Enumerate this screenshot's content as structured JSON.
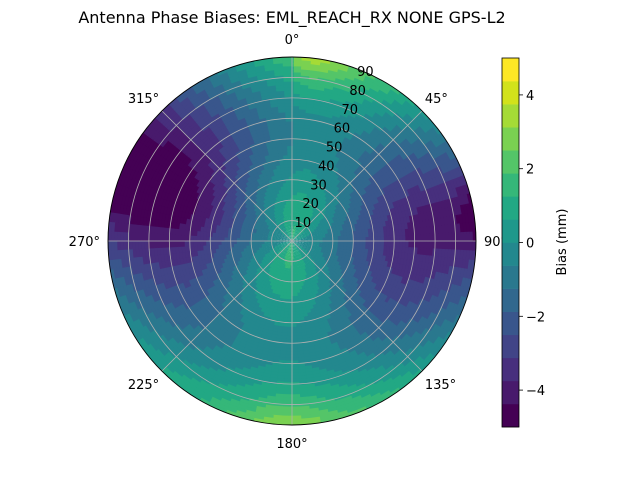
{
  "chart_data": {
    "type": "polar-contour",
    "title": "Antenna Phase Biases: EML_REACH_RX    NONE GPS-L2",
    "angular_ticks": [
      {
        "deg": 0,
        "label": "0°"
      },
      {
        "deg": 45,
        "label": "45°"
      },
      {
        "deg": 90,
        "label": "90°"
      },
      {
        "deg": 135,
        "label": "135°"
      },
      {
        "deg": 180,
        "label": "180°"
      },
      {
        "deg": 225,
        "label": "225°"
      },
      {
        "deg": 270,
        "label": "270°"
      },
      {
        "deg": 315,
        "label": "315°"
      }
    ],
    "radial_ticks": [
      "10",
      "20",
      "30",
      "40",
      "50",
      "60",
      "70",
      "80",
      "90"
    ],
    "radial_range": [
      0,
      90
    ],
    "angle_zero": "top",
    "angle_direction": "clockwise",
    "grid": true,
    "colorbar": {
      "label": "Bias (mm)",
      "range": [
        -5,
        5
      ],
      "ticks": [
        "−4",
        "−2",
        "0",
        "2",
        "4"
      ],
      "tick_values": [
        -4,
        -2,
        0,
        2,
        4
      ],
      "levels": [
        -5,
        -4.375,
        -3.75,
        -3.125,
        -2.5,
        -1.875,
        -1.25,
        -0.625,
        0,
        0.625,
        1.25,
        1.875,
        2.5,
        3.125,
        3.75,
        4.375,
        5
      ],
      "colors": [
        "#440154",
        "#481a6c",
        "#472f7d",
        "#414487",
        "#39568c",
        "#31688e",
        "#2a788e",
        "#23888e",
        "#1f988b",
        "#22a884",
        "#35b779",
        "#54c568",
        "#7ad151",
        "#a5db36",
        "#d2e21b",
        "#fde725"
      ]
    },
    "field_description_points": [
      {
        "az": 0,
        "el": 0,
        "bias": 2.5
      },
      {
        "az": 10,
        "el": 5,
        "bias": 3.5
      },
      {
        "az": 60,
        "el": 0,
        "bias": -2.5
      },
      {
        "az": 85,
        "el": 5,
        "bias": -4.0
      },
      {
        "az": 90,
        "el": 30,
        "bias": -1.5
      },
      {
        "az": 135,
        "el": 20,
        "bias": 0.5
      },
      {
        "az": 160,
        "el": 50,
        "bias": 2.0
      },
      {
        "az": 180,
        "el": 0,
        "bias": 2.5
      },
      {
        "az": 185,
        "el": 5,
        "bias": 3.0
      },
      {
        "az": 225,
        "el": 20,
        "bias": -1.0
      },
      {
        "az": 285,
        "el": 15,
        "bias": -3.0
      },
      {
        "az": 315,
        "el": 40,
        "bias": -1.5
      },
      {
        "az": 0,
        "el": 90,
        "bias": -1.0
      }
    ]
  }
}
